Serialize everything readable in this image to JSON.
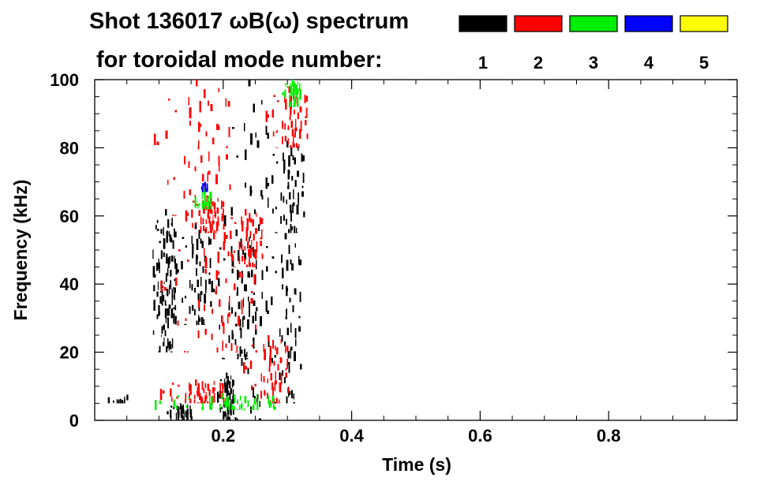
{
  "chart_data": {
    "type": "scatter",
    "title_line1": "Shot 136017 ωB(ω) spectrum",
    "title_line2": "for toroidal mode number:",
    "xlabel": "Time (s)",
    "ylabel": "Frequency (kHz)",
    "xlim": [
      0.0,
      1.0
    ],
    "ylim": [
      0,
      100
    ],
    "x_ticks": [
      "0.2",
      "0.4",
      "0.6",
      "0.8"
    ],
    "x_tick_values": [
      0.2,
      0.4,
      0.6,
      0.8
    ],
    "y_ticks": [
      "0",
      "20",
      "40",
      "60",
      "80",
      "100"
    ],
    "y_tick_values": [
      0,
      20,
      40,
      60,
      80,
      100
    ],
    "grid": false,
    "legend_position": "top-right",
    "series": [
      {
        "name": "1",
        "color": "#000000"
      },
      {
        "name": "2",
        "color": "#ff0000"
      },
      {
        "name": "3",
        "color": "#00ee00"
      },
      {
        "name": "4",
        "color": "#0000ff"
      },
      {
        "name": "5",
        "color": "#ffff00"
      }
    ],
    "regions": [
      {
        "mode": "1",
        "x": [
          0.09,
          0.125
        ],
        "y": [
          20,
          62
        ]
      },
      {
        "mode": "1",
        "x": [
          0.125,
          0.18
        ],
        "y": [
          28,
          58
        ]
      },
      {
        "mode": "1",
        "x": [
          0.18,
          0.25
        ],
        "y": [
          18,
          56
        ]
      },
      {
        "mode": "1",
        "x": [
          0.265,
          0.325
        ],
        "y": [
          55,
          82
        ]
      },
      {
        "mode": "1",
        "x": [
          0.2,
          0.27
        ],
        "y": [
          0,
          100
        ]
      },
      {
        "mode": "1",
        "x": [
          0.19,
          0.215
        ],
        "y": [
          0,
          14
        ]
      },
      {
        "mode": "1",
        "x": [
          0.11,
          0.15
        ],
        "y": [
          0,
          5
        ]
      },
      {
        "mode": "1",
        "x": [
          0.265,
          0.32
        ],
        "y": [
          5,
          55
        ]
      },
      {
        "mode": "1",
        "x": [
          0.02,
          0.05
        ],
        "y": [
          5,
          8
        ]
      },
      {
        "mode": "2",
        "x": [
          0.14,
          0.2
        ],
        "y": [
          55,
          66
        ]
      },
      {
        "mode": "2",
        "x": [
          0.2,
          0.26
        ],
        "y": [
          45,
          62
        ]
      },
      {
        "mode": "2",
        "x": [
          0.09,
          0.21
        ],
        "y": [
          60,
          100
        ]
      },
      {
        "mode": "2",
        "x": [
          0.265,
          0.33
        ],
        "y": [
          80,
          98
        ]
      },
      {
        "mode": "2",
        "x": [
          0.1,
          0.25
        ],
        "y": [
          20,
          55
        ]
      },
      {
        "mode": "2",
        "x": [
          0.1,
          0.2
        ],
        "y": [
          5,
          12
        ]
      },
      {
        "mode": "2",
        "x": [
          0.23,
          0.3
        ],
        "y": [
          5,
          25
        ]
      },
      {
        "mode": "3",
        "x": [
          0.155,
          0.18
        ],
        "y": [
          62,
          68
        ]
      },
      {
        "mode": "3",
        "x": [
          0.29,
          0.32
        ],
        "y": [
          92,
          100
        ]
      },
      {
        "mode": "3",
        "x": [
          0.09,
          0.28
        ],
        "y": [
          3,
          8
        ]
      },
      {
        "mode": "4",
        "x": [
          0.165,
          0.175
        ],
        "y": [
          67,
          70
        ]
      }
    ]
  }
}
